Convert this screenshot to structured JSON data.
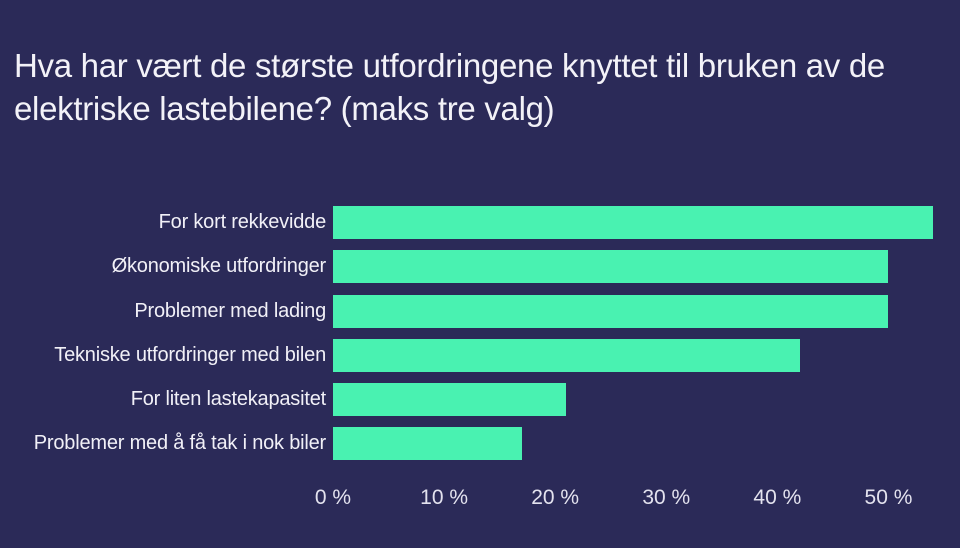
{
  "page": {
    "background_color": "#2b2a58"
  },
  "chart_data": {
    "type": "bar",
    "orientation": "horizontal",
    "title": "Hva har vært de største utfordringene knyttet til bruken av de elektriske lastebilene? (maks tre valg)",
    "categories": [
      "For kort rekkevidde",
      "Økonomiske utfordringer",
      "Problemer med lading",
      "Tekniske utfordringer med bilen",
      "For liten lastekapasitet",
      "Problemer med å få tak i nok biler"
    ],
    "values": [
      54,
      50,
      50,
      42,
      21,
      17
    ],
    "unit": "%",
    "xlabel": "",
    "ylabel": "",
    "xlim": [
      0,
      55
    ],
    "x_tick_values": [
      0,
      10,
      20,
      30,
      40,
      50
    ],
    "x_tick_labels": [
      "0 %",
      "10 %",
      "20 %",
      "30 %",
      "40 %",
      "50 %"
    ],
    "grid": false,
    "legend": "none",
    "bar_color": "#49f2b1",
    "background_color": "#2b2a58",
    "title_color": "#f3f2f8",
    "label_color": "#f1f0f7",
    "tick_color": "#e3e2ee"
  }
}
